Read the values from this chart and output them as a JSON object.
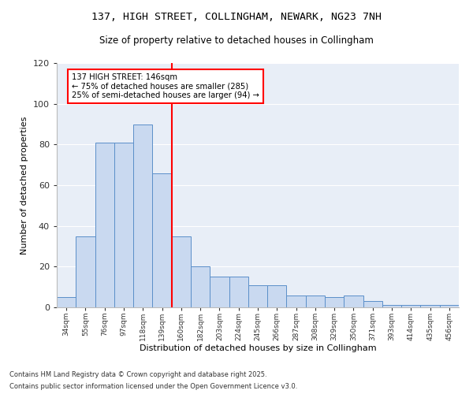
{
  "title_line1": "137, HIGH STREET, COLLINGHAM, NEWARK, NG23 7NH",
  "title_line2": "Size of property relative to detached houses in Collingham",
  "xlabel": "Distribution of detached houses by size in Collingham",
  "ylabel": "Number of detached properties",
  "categories": [
    "34sqm",
    "55sqm",
    "76sqm",
    "97sqm",
    "118sqm",
    "139sqm",
    "160sqm",
    "182sqm",
    "203sqm",
    "224sqm",
    "245sqm",
    "266sqm",
    "287sqm",
    "308sqm",
    "329sqm",
    "350sqm",
    "371sqm",
    "393sqm",
    "414sqm",
    "435sqm",
    "456sqm"
  ],
  "values": [
    5,
    35,
    81,
    81,
    90,
    66,
    35,
    20,
    15,
    15,
    11,
    11,
    6,
    6,
    5,
    6,
    3,
    1,
    1,
    1,
    1
  ],
  "bar_color": "#c9d9f0",
  "bar_edge_color": "#5b8fc9",
  "vline_color": "red",
  "annotation_text": "137 HIGH STREET: 146sqm\n← 75% of detached houses are smaller (285)\n25% of semi-detached houses are larger (94) →",
  "annotation_box_color": "white",
  "annotation_box_edge_color": "red",
  "ylim": [
    0,
    120
  ],
  "yticks": [
    0,
    20,
    40,
    60,
    80,
    100,
    120
  ],
  "background_color": "#e8eef7",
  "footer_line1": "Contains HM Land Registry data © Crown copyright and database right 2025.",
  "footer_line2": "Contains public sector information licensed under the Open Government Licence v3.0."
}
